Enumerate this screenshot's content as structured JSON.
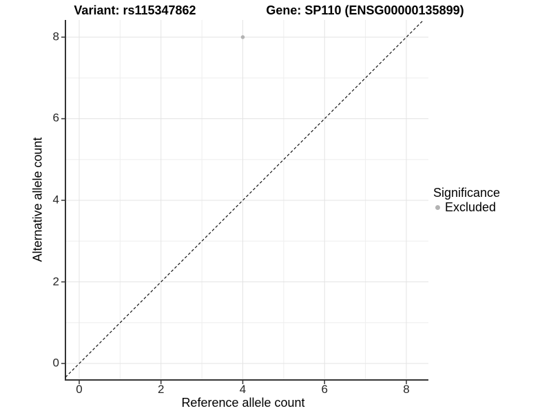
{
  "chart_data": {
    "type": "scatter",
    "title_left": "Variant: rs115347862",
    "title_right": "Gene: SP110 (ENSG00000135899)",
    "xlabel": "Reference allele count",
    "ylabel": "Alternative allele count",
    "xlim": [
      -0.337,
      8.539
    ],
    "ylim": [
      -0.404,
      8.421
    ],
    "x_major_ticks": [
      0,
      2,
      4,
      6,
      8
    ],
    "y_major_ticks": [
      0,
      2,
      4,
      6,
      8
    ],
    "x_minor_gridlines": [
      1,
      3,
      5,
      7
    ],
    "y_minor_gridlines": [
      1,
      3,
      5,
      7
    ],
    "grid": "on",
    "points": [
      {
        "x": 4,
        "y": 8,
        "significance": "Excluded"
      }
    ],
    "identity_line": {
      "slope": 1,
      "intercept": 0,
      "style": "dashed"
    },
    "legend": {
      "title": "Significance",
      "position": "right",
      "items": [
        {
          "label": "Excluded",
          "color": "#b3b3b3"
        }
      ]
    },
    "colors": {
      "point": "#b3b3b3",
      "grid_major": "#e3e3e3",
      "grid_minor": "#eeeeee",
      "axis": "#333333",
      "identity_line": "#111111",
      "tick_label": "#262626",
      "background": "#ffffff"
    }
  }
}
